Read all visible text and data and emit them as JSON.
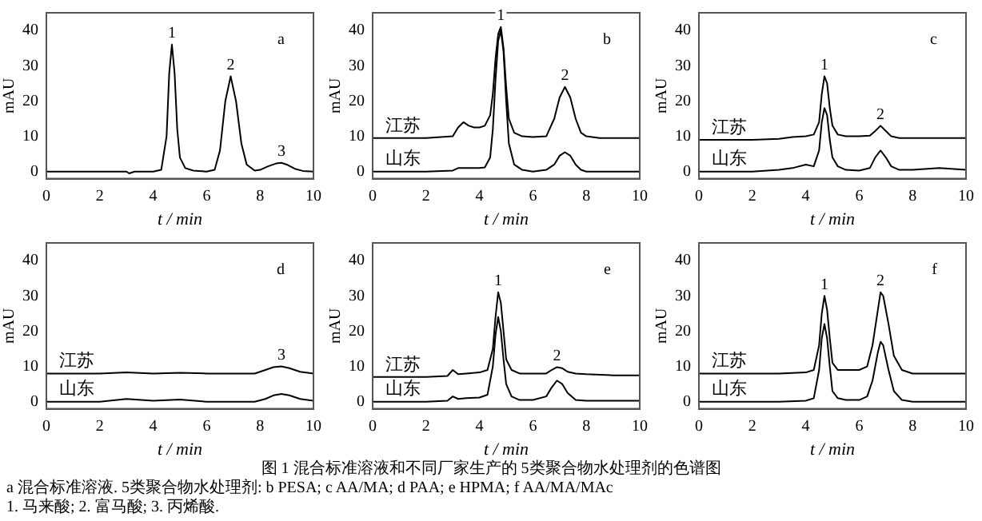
{
  "chart_data": [
    {
      "type": "line",
      "xlabel": "t / min",
      "ylabel": "mAU",
      "xlim": [
        0,
        10
      ],
      "xticks": [
        0,
        2,
        4,
        6,
        8,
        10
      ],
      "ylim": [
        -2,
        45
      ],
      "yticks": [
        0,
        10,
        20,
        30,
        40
      ],
      "marker": "none",
      "x": [
        0,
        1,
        2,
        3,
        3.1,
        3.3,
        4,
        4.3,
        4.5,
        4.6,
        4.7,
        4.8,
        4.9,
        5.0,
        5.2,
        5.5,
        6,
        6.3,
        6.5,
        6.7,
        6.9,
        7.1,
        7.3,
        7.5,
        7.8,
        8.0,
        8.3,
        8.6,
        8.8,
        9.0,
        9.3,
        9.6,
        10
      ],
      "series": [
        {
          "color": "#000000",
          "values": [
            0,
            0,
            0,
            0,
            -0.5,
            0,
            0,
            0.5,
            10,
            28,
            36,
            28,
            12,
            4,
            1,
            0.3,
            0,
            0.5,
            6,
            20,
            27,
            20,
            8,
            2,
            0.3,
            0.5,
            1.5,
            2.3,
            2.5,
            2,
            0.8,
            0.2,
            0
          ]
        }
      ],
      "annotations": [
        "a",
        {
          "text": "1",
          "x": 4.7,
          "y": 36
        },
        {
          "text": "2",
          "x": 6.9,
          "y": 27
        },
        {
          "text": "3",
          "x": 8.8,
          "y": 2.5
        }
      ]
    },
    {
      "type": "line",
      "xlabel": "t / min",
      "ylabel": "mAU",
      "xlim": [
        0,
        10
      ],
      "xticks": [
        0,
        2,
        4,
        6,
        8,
        10
      ],
      "ylim": [
        -2,
        45
      ],
      "yticks": [
        0,
        10,
        20,
        30,
        40
      ],
      "marker": "none",
      "x": [
        0,
        1,
        2,
        3,
        3.2,
        3.4,
        3.6,
        3.8,
        4,
        4.2,
        4.4,
        4.5,
        4.6,
        4.7,
        4.8,
        4.9,
        5.0,
        5.1,
        5.3,
        5.6,
        6,
        6.5,
        6.8,
        7.0,
        7.2,
        7.4,
        7.6,
        7.8,
        8,
        8.5,
        10
      ],
      "series": [
        {
          "name": "江苏",
          "color": "#000000",
          "values": [
            9.5,
            9.5,
            9.5,
            10,
            12.5,
            14,
            13,
            12.5,
            12.5,
            13,
            16,
            22,
            32,
            39,
            41,
            35,
            24,
            15,
            11,
            10,
            9.8,
            10,
            15,
            21,
            24,
            21,
            15,
            11,
            10,
            9.5,
            9.5
          ]
        },
        {
          "name": "山东",
          "color": "#000000",
          "values": [
            0,
            0,
            0,
            0.3,
            1,
            1,
            1,
            1,
            1,
            1.2,
            4,
            12,
            26,
            37,
            40,
            34,
            20,
            8,
            2,
            0.5,
            0,
            0.5,
            2,
            4.5,
            5.5,
            4.5,
            2,
            0.5,
            0,
            0,
            0
          ]
        }
      ],
      "annotations": [
        "b",
        {
          "text": "1",
          "x": 4.8,
          "y": 41
        },
        {
          "text": "2",
          "x": 7.2,
          "y": 24
        }
      ]
    },
    {
      "type": "line",
      "xlabel": "t / min",
      "ylabel": "mAU",
      "xlim": [
        0,
        10
      ],
      "xticks": [
        0,
        2,
        4,
        6,
        8,
        10
      ],
      "ylim": [
        -2,
        45
      ],
      "yticks": [
        0,
        10,
        20,
        30,
        40
      ],
      "marker": "none",
      "x": [
        0,
        1,
        2,
        3,
        3.5,
        4,
        4.3,
        4.5,
        4.6,
        4.7,
        4.8,
        4.9,
        5.0,
        5.2,
        5.5,
        6,
        6.4,
        6.6,
        6.8,
        7.0,
        7.2,
        7.5,
        8,
        9,
        10
      ],
      "series": [
        {
          "name": "江苏",
          "color": "#000000",
          "values": [
            9,
            9,
            9,
            9.3,
            9.8,
            10,
            10.5,
            14,
            22,
            27,
            25,
            18,
            13,
            10.5,
            10,
            10,
            10.2,
            11.5,
            13,
            11.5,
            10,
            9.5,
            9.5,
            9.5,
            9.5
          ]
        },
        {
          "name": "山东",
          "color": "#000000",
          "values": [
            0,
            0,
            0,
            0.5,
            1,
            2,
            1.5,
            6,
            14,
            18,
            16,
            9,
            4,
            1.5,
            0.5,
            0.3,
            1,
            4,
            6,
            4,
            1.5,
            0.5,
            0.5,
            1,
            0.5
          ]
        }
      ],
      "annotations": [
        "c",
        {
          "text": "1",
          "x": 4.7,
          "y": 27
        },
        {
          "text": "2",
          "x": 6.8,
          "y": 13
        }
      ]
    },
    {
      "type": "line",
      "xlabel": "t / min",
      "ylabel": "mAU",
      "xlim": [
        0,
        10
      ],
      "xticks": [
        0,
        2,
        4,
        6,
        8,
        10
      ],
      "ylim": [
        -2,
        45
      ],
      "yticks": [
        0,
        10,
        20,
        30,
        40
      ],
      "marker": "none",
      "x": [
        0,
        1,
        2,
        3,
        4,
        5,
        6,
        7,
        7.8,
        8.2,
        8.5,
        8.8,
        9.1,
        9.5,
        10
      ],
      "series": [
        {
          "name": "江苏",
          "color": "#000000",
          "values": [
            8,
            8,
            8,
            8.3,
            8,
            8.2,
            8,
            8,
            8,
            9,
            9.8,
            10,
            9.5,
            8.5,
            8
          ]
        },
        {
          "name": "山东",
          "color": "#000000",
          "values": [
            0,
            0,
            0,
            0.8,
            0.3,
            0.6,
            0,
            0,
            0,
            0.8,
            1.8,
            2.2,
            1.8,
            0.8,
            0.3
          ]
        }
      ],
      "annotations": [
        "d",
        {
          "text": "3",
          "x": 8.8,
          "y": 10
        }
      ]
    },
    {
      "type": "line",
      "xlabel": "t / min",
      "ylabel": "mAU",
      "xlim": [
        0,
        10
      ],
      "xticks": [
        0,
        2,
        4,
        6,
        8,
        10
      ],
      "ylim": [
        -2,
        45
      ],
      "yticks": [
        0,
        10,
        20,
        30,
        40
      ],
      "marker": "none",
      "x": [
        0,
        2,
        2.8,
        3,
        3.2,
        3.5,
        4,
        4.3,
        4.5,
        4.6,
        4.7,
        4.8,
        4.9,
        5.0,
        5.2,
        5.5,
        6,
        6.5,
        6.7,
        6.9,
        7.1,
        7.3,
        7.6,
        8,
        9,
        10
      ],
      "series": [
        {
          "name": "江苏",
          "color": "#000000",
          "values": [
            7,
            7,
            7.3,
            9,
            7.8,
            8,
            8.3,
            9,
            15,
            24,
            31,
            28,
            20,
            12,
            9,
            8,
            8,
            8,
            9,
            9.8,
            9.5,
            8.5,
            8,
            7.8,
            7.5,
            7.5
          ]
        },
        {
          "name": "山东",
          "color": "#000000",
          "values": [
            0,
            0,
            0.3,
            1.5,
            0.8,
            1,
            1.2,
            2,
            10,
            19,
            24,
            20,
            12,
            5,
            1.5,
            0.5,
            0.5,
            1.5,
            4,
            6,
            5,
            2.5,
            0.5,
            0.3,
            0.3,
            0.3
          ]
        }
      ],
      "annotations": [
        "e",
        {
          "text": "1",
          "x": 4.7,
          "y": 31
        },
        {
          "text": "2",
          "x": 6.9,
          "y": 9.8
        }
      ]
    },
    {
      "type": "line",
      "xlabel": "t / min",
      "ylabel": "mAU",
      "xlim": [
        0,
        10
      ],
      "xticks": [
        0,
        2,
        4,
        6,
        8,
        10
      ],
      "ylim": [
        -2,
        45
      ],
      "yticks": [
        0,
        10,
        20,
        30,
        40
      ],
      "marker": "none",
      "x": [
        0,
        2,
        3,
        4,
        4.3,
        4.5,
        4.6,
        4.7,
        4.8,
        4.9,
        5.0,
        5.2,
        5.5,
        6,
        6.3,
        6.5,
        6.7,
        6.8,
        6.9,
        7.1,
        7.3,
        7.6,
        8,
        9,
        10
      ],
      "series": [
        {
          "name": "江苏",
          "color": "#000000",
          "values": [
            8,
            8,
            8,
            8.3,
            9,
            16,
            25,
            30,
            26,
            18,
            11,
            9,
            9,
            9,
            10,
            16,
            26,
            31,
            30,
            22,
            13,
            9,
            8,
            8,
            8
          ]
        },
        {
          "name": "山东",
          "color": "#000000",
          "values": [
            0,
            0,
            0,
            0.3,
            1,
            9,
            18,
            22,
            18,
            10,
            3,
            1,
            0.5,
            0.5,
            1.5,
            6,
            14,
            17,
            16,
            9,
            3,
            0.5,
            0,
            0,
            0
          ]
        }
      ],
      "annotations": [
        "f",
        {
          "text": "1",
          "x": 4.7,
          "y": 30
        },
        {
          "text": "2",
          "x": 6.8,
          "y": 31
        }
      ]
    },
    {
      "type": "other",
      "title": "图 1  混合标准溶液和不同厂家生产的 5类聚合物水处理剂的色谱图",
      "annotations": [
        "a  混合标准溶液. 5类聚合物水处理剂: b  PESA; c  AA/MA; d  PAA; e  HPMA; f  AA/MA/MAc",
        "1. 马来酸; 2. 富马酸; 3. 丙烯酸."
      ]
    }
  ]
}
